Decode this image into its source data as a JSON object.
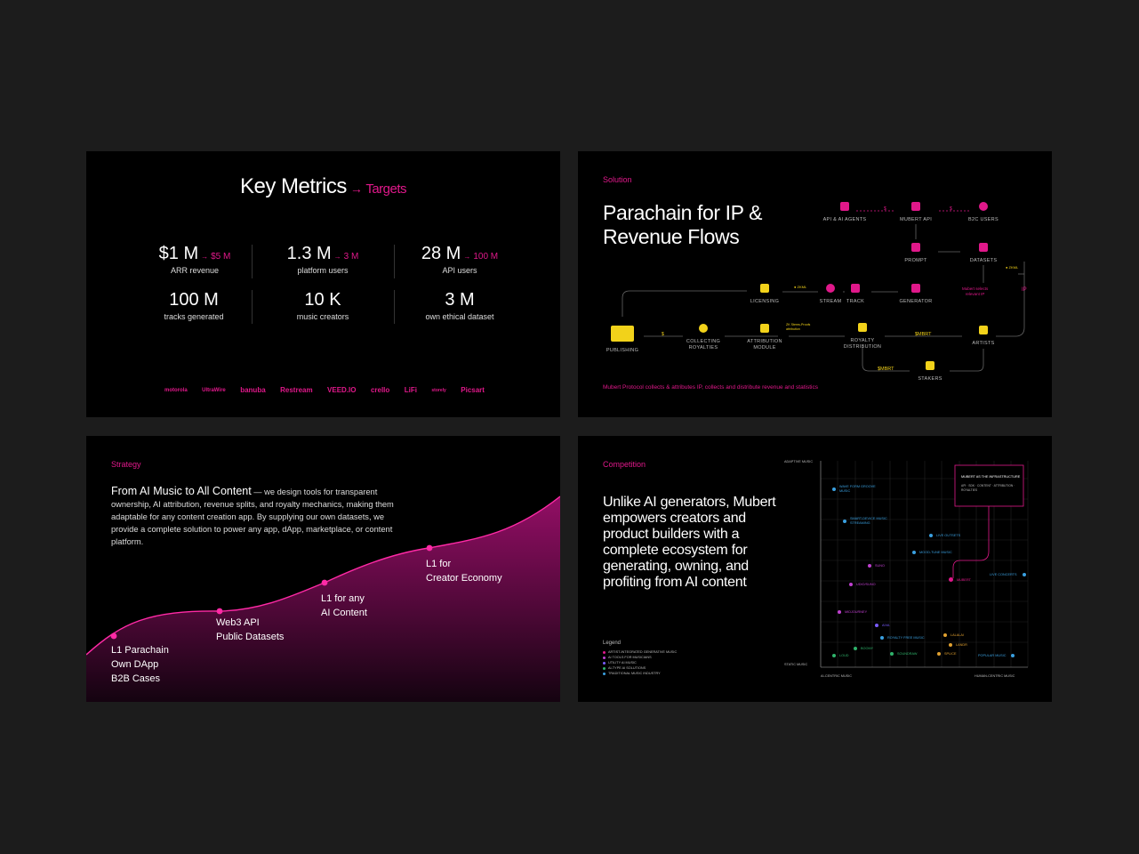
{
  "metrics_slide": {
    "title": "Key Metrics",
    "title_arrow": "→",
    "title_target": "Targets",
    "metrics": [
      {
        "value": "$1 M",
        "target": "$5 M",
        "desc": "ARR revenue"
      },
      {
        "value": "1.3 M",
        "target": "3 M",
        "desc": "platform users"
      },
      {
        "value": "28 M",
        "target": "100 M",
        "desc": "API users"
      },
      {
        "value": "100 M",
        "target": "",
        "desc": "tracks generated"
      },
      {
        "value": "10 K",
        "target": "",
        "desc": "music creators"
      },
      {
        "value": "3 M",
        "target": "",
        "desc": "own ethical dataset"
      }
    ],
    "arrow": "→",
    "logos": [
      "motorola",
      "UltraWire",
      "banuba",
      "Restream",
      "VEED.IO",
      "crello",
      "LiFi",
      "storely",
      "Picsart"
    ]
  },
  "solution_slide": {
    "section": "Solution",
    "title_line1": "Parachain for IP &",
    "title_line2": "Revenue Flows",
    "nodes": {
      "api_agents": "API & AI AGENTS",
      "mubert_api": "MUBERT API",
      "b2c_users": "B2C USERS",
      "prompt": "PROMPT",
      "datasets": "DATASETS",
      "licensing": "LICENSING",
      "stream": "STREAM",
      "track": "TRACK",
      "generator": "GENERATOR",
      "publishing": "PUBLISHING",
      "collecting_l1": "COLLECTING",
      "collecting_l2": "ROYALTIES",
      "attribution_l1": "ATTRIBUTION",
      "attribution_l2": "MODULE",
      "royalty_l1": "ROYALTY",
      "royalty_l2": "DISTRIBUTION",
      "artists": "ARTISTS",
      "stakers": "STAKERS"
    },
    "edge_labels": {
      "dollar1": "$",
      "dollar2": "$",
      "dollar3": "$",
      "smbrt1": "$MBRT",
      "smbrt2": "$MBRT",
      "ip": "IP",
      "zkml1": "ZKML",
      "zkml2": "ZKML",
      "zk_stems": "ZK Stems-Proofs attribution",
      "mubert_selects_l1": "Mubert selects",
      "mubert_selects_l2": "relevant IP"
    },
    "footnote": "Mubert Protocol collects & attributes IP, collects and distribute revenue and statistics"
  },
  "strategy_slide": {
    "section": "Strategy",
    "lead": "From AI Music to All Content",
    "body": " — we design tools for transparent ownership, AI attribution, revenue splits, and royalty mechanics, making them adaptable for any content creation app. By supplying our own datasets, we provide a complete solution to power any app, dApp, marketplace, or content platform.",
    "milestones": [
      {
        "l1": "L1 Parachain",
        "l2": "Own DApp",
        "l3": "B2B Cases"
      },
      {
        "l1": "Web3 API",
        "l2": "Public Datasets",
        "l3": ""
      },
      {
        "l1": "L1 for any",
        "l2": "AI Content",
        "l3": ""
      },
      {
        "l1": "L1 for",
        "l2": "Creator Economy",
        "l3": ""
      }
    ]
  },
  "competition_slide": {
    "section": "Competition",
    "title": "Unlike AI generators, Mubert empowers creators and product builders with a complete ecosystem for generating, owning, and profiting from AI content",
    "legend_title": "Legend",
    "legend": [
      {
        "label": "ARTIST-INTEGRATED GENERATIVE MUSIC",
        "color": "#e0188a"
      },
      {
        "label": "AI TOOLS FOR MUSICIANS",
        "color": "#c040d0"
      },
      {
        "label": "UTILITY AI MUSIC",
        "color": "#7a5cff"
      },
      {
        "label": "AI-TYPE AI SOLUTIONS",
        "color": "#2fb36b"
      },
      {
        "label": "TRADITIONAL MUSIC INDUSTRY",
        "color": "#3aa0e0"
      }
    ],
    "axes": {
      "y_top": "ADAPTIVE MUSIC",
      "y_bottom": "STATIC MUSIC",
      "x_left": "AI-CENTRIC MUSIC",
      "x_right": "HUMAN-CENTRIC MUSIC"
    },
    "callout_title": "MUBERT AS THE INFRASTRUCTURE",
    "callout_body": "API · SDK · CONTENT · ATTRIBUTION · ROYALTIES",
    "points": [
      {
        "label": "WAVE FORM GROOVE MUSIC",
        "color": "#3aa0e0"
      },
      {
        "label": "SMART-DEVICE MUSIC STREAMING",
        "color": "#3aa0e0"
      },
      {
        "label": "LIVE OUTSETS",
        "color": "#3aa0e0"
      },
      {
        "label": "MOOD-TUNE MUSIC",
        "color": "#3aa0e0"
      },
      {
        "label": "SUNO",
        "color": "#c040d0"
      },
      {
        "label": "MUBERT",
        "color": "#e0188a"
      },
      {
        "label": "LIVE CONCERTS",
        "color": "#3aa0e0"
      },
      {
        "label": "UDIO/SUNO",
        "color": "#c040d0"
      },
      {
        "label": "MIDJOURNEY",
        "color": "#c040d0"
      },
      {
        "label": "AIVA",
        "color": "#7a5cff"
      },
      {
        "label": "ROYALTY FREE MUSIC",
        "color": "#3aa0e0"
      },
      {
        "label": "LALALAI",
        "color": "#e0a030"
      },
      {
        "label": "LANDR",
        "color": "#e0a030"
      },
      {
        "label": "BOOMY",
        "color": "#2fb36b"
      },
      {
        "label": "LOUD",
        "color": "#2fb36b"
      },
      {
        "label": "SOUNDRAW",
        "color": "#2fb36b"
      },
      {
        "label": "SPLICE",
        "color": "#e0a030"
      },
      {
        "label": "POPULAR MUSIC",
        "color": "#3aa0e0"
      }
    ]
  }
}
